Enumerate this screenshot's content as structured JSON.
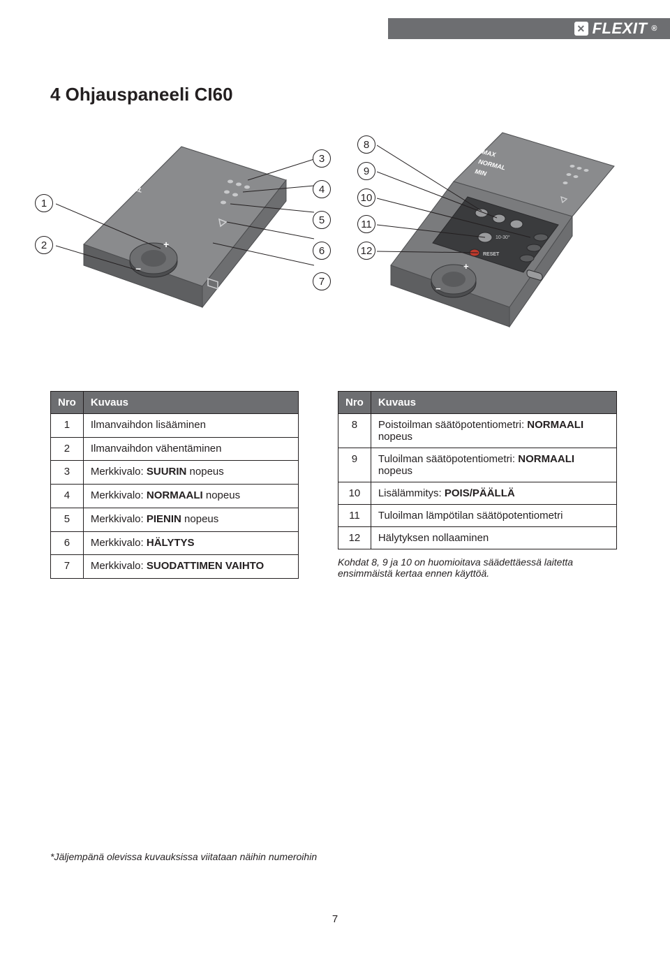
{
  "brand": "FLEXIT",
  "page_title": "4  Ohjauspaneeli CI60",
  "page_number": "7",
  "panel_labels": {
    "max": "MAX",
    "normal": "NORMAL",
    "min": "MIN"
  },
  "callouts_left": [
    "1",
    "2"
  ],
  "callouts_mid": [
    "3",
    "4",
    "5",
    "6",
    "7"
  ],
  "callouts_right": [
    "8",
    "9",
    "10",
    "11",
    "12"
  ],
  "table1": {
    "headers": [
      "Nro",
      "Kuvaus"
    ],
    "rows": [
      {
        "n": "1",
        "text": "Ilmanvaihdon lisääminen"
      },
      {
        "n": "2",
        "text": "Ilmanvaihdon vähentäminen"
      },
      {
        "n": "3",
        "pre": "Merkkivalo: ",
        "bold": "SUURIN",
        "post": " nopeus"
      },
      {
        "n": "4",
        "pre": "Merkkivalo: ",
        "bold": "NORMAALI",
        "post": " nopeus"
      },
      {
        "n": "5",
        "pre": "Merkkivalo: ",
        "bold": "PIENIN",
        "post": " nopeus"
      },
      {
        "n": "6",
        "pre": "Merkkivalo: ",
        "bold": "HÄLYTYS",
        "post": ""
      },
      {
        "n": "7",
        "pre": "Merkkivalo: ",
        "bold": "SUODATTIMEN VAIHTO",
        "post": ""
      }
    ]
  },
  "table2": {
    "headers": [
      "Nro",
      "Kuvaus"
    ],
    "rows": [
      {
        "n": "8",
        "pre": "Poistoilman säätöpotentiometri: ",
        "bold": "NORMAALI",
        "post": " nopeus"
      },
      {
        "n": "9",
        "pre": "Tuloilman säätöpotentiometri: ",
        "bold": "NORMAALI",
        "post": " nopeus"
      },
      {
        "n": "10",
        "pre": "Lisälämmitys: ",
        "bold": "POIS/PÄÄLLÄ",
        "post": ""
      },
      {
        "n": "11",
        "text": "Tuloilman lämpötilan säätöpotentiometri"
      },
      {
        "n": "12",
        "text": "Hälytyksen nollaaminen"
      }
    ],
    "note": "Kohdat 8, 9 ja 10 on huomioitava säädettäessä laitetta ensimmäistä kertaa ennen käyttöä."
  },
  "footnote": "*Jäljempänä olevissa kuvauksissa viitataan näihin numeroihin",
  "colors": {
    "header_bar": "#6d6e71",
    "panel_dark": "#5e5f61",
    "panel_mid": "#7a7b7d",
    "panel_light": "#9a9b9d",
    "text": "#231f20"
  }
}
